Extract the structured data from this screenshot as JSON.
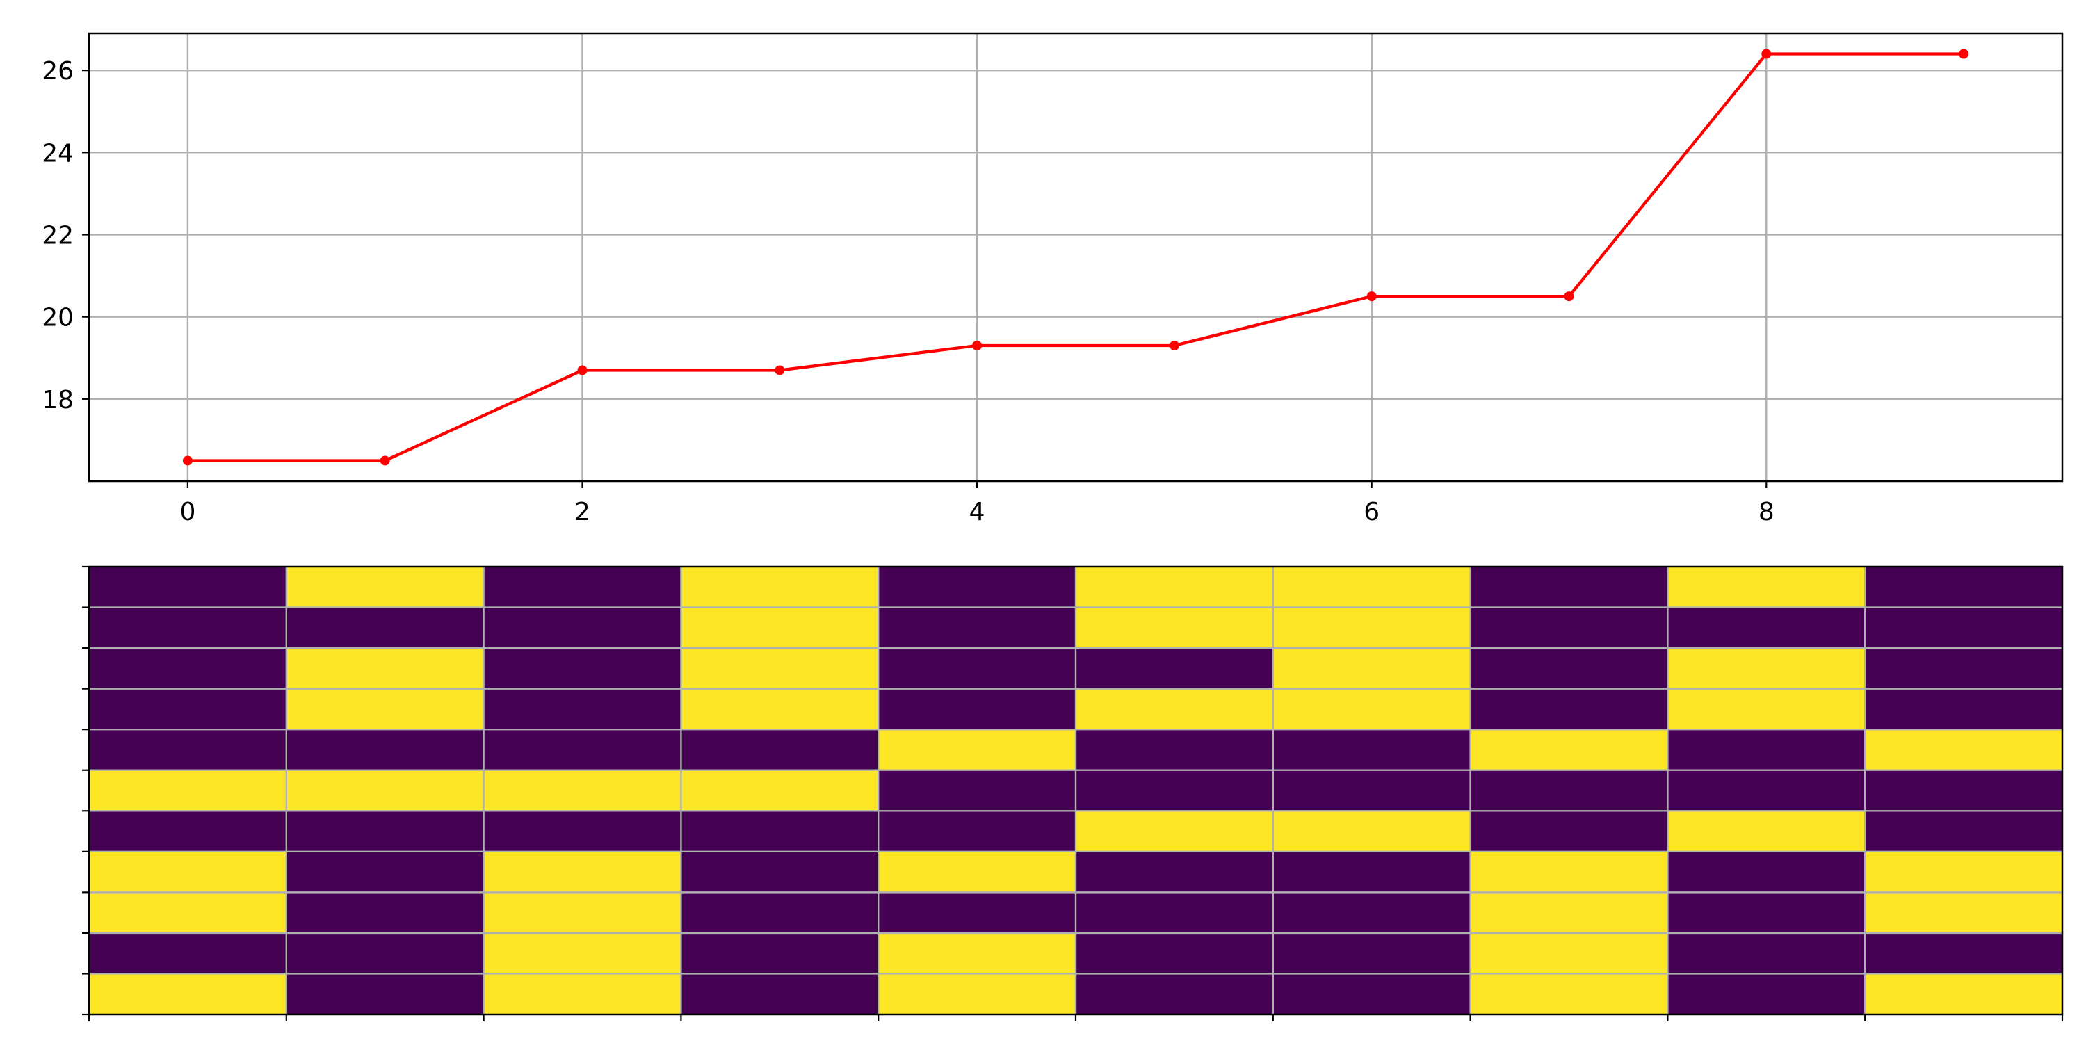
{
  "chart_data": [
    {
      "type": "line",
      "x": [
        0,
        1,
        2,
        3,
        4,
        5,
        6,
        7,
        8,
        9
      ],
      "series": [
        {
          "values": [
            16.5,
            16.5,
            18.7,
            18.7,
            19.3,
            19.3,
            20.5,
            20.5,
            26.4,
            26.4
          ],
          "color": "#ff0000",
          "marker": "circle"
        }
      ],
      "xticks": [
        0,
        2,
        4,
        6,
        8
      ],
      "xtick_labels": [
        "0",
        "2",
        "4",
        "6",
        "8"
      ],
      "yticks": [
        18,
        20,
        22,
        24,
        26
      ],
      "ytick_labels": [
        "18",
        "20",
        "22",
        "24",
        "26"
      ],
      "xlim": [
        -0.5,
        9.5
      ],
      "ylim": [
        16.0,
        26.9
      ],
      "grid": true,
      "title": "",
      "xlabel": "",
      "ylabel": ""
    },
    {
      "type": "heatmap",
      "rows": 11,
      "cols": 10,
      "cell_boundaries": [
        0,
        1,
        2,
        3,
        4,
        5,
        6,
        7,
        8,
        9,
        10
      ],
      "colors": {
        "0": "#440154",
        "1": "#fde725"
      },
      "matrix": [
        [
          0,
          1,
          0,
          1,
          0,
          1,
          1,
          0,
          1,
          0
        ],
        [
          0,
          0,
          0,
          1,
          0,
          1,
          1,
          0,
          0,
          0
        ],
        [
          0,
          1,
          0,
          1,
          0,
          0,
          1,
          0,
          1,
          0
        ],
        [
          0,
          1,
          0,
          1,
          0,
          1,
          1,
          0,
          1,
          0
        ],
        [
          0,
          0,
          0,
          0,
          1,
          0,
          0,
          1,
          0,
          1
        ],
        [
          1,
          1,
          1,
          1,
          0,
          0,
          0,
          0,
          0,
          0
        ],
        [
          0,
          0,
          0,
          0,
          0,
          1,
          1,
          0,
          1,
          0
        ],
        [
          1,
          0,
          1,
          0,
          1,
          0,
          0,
          1,
          0,
          1
        ],
        [
          1,
          0,
          1,
          0,
          0,
          0,
          0,
          1,
          0,
          1
        ],
        [
          0,
          0,
          1,
          0,
          1,
          0,
          0,
          1,
          0,
          0
        ],
        [
          1,
          0,
          1,
          0,
          1,
          0,
          0,
          1,
          0,
          1
        ]
      ],
      "grid": true,
      "title": "",
      "xlabel": "",
      "ylabel": ""
    }
  ]
}
